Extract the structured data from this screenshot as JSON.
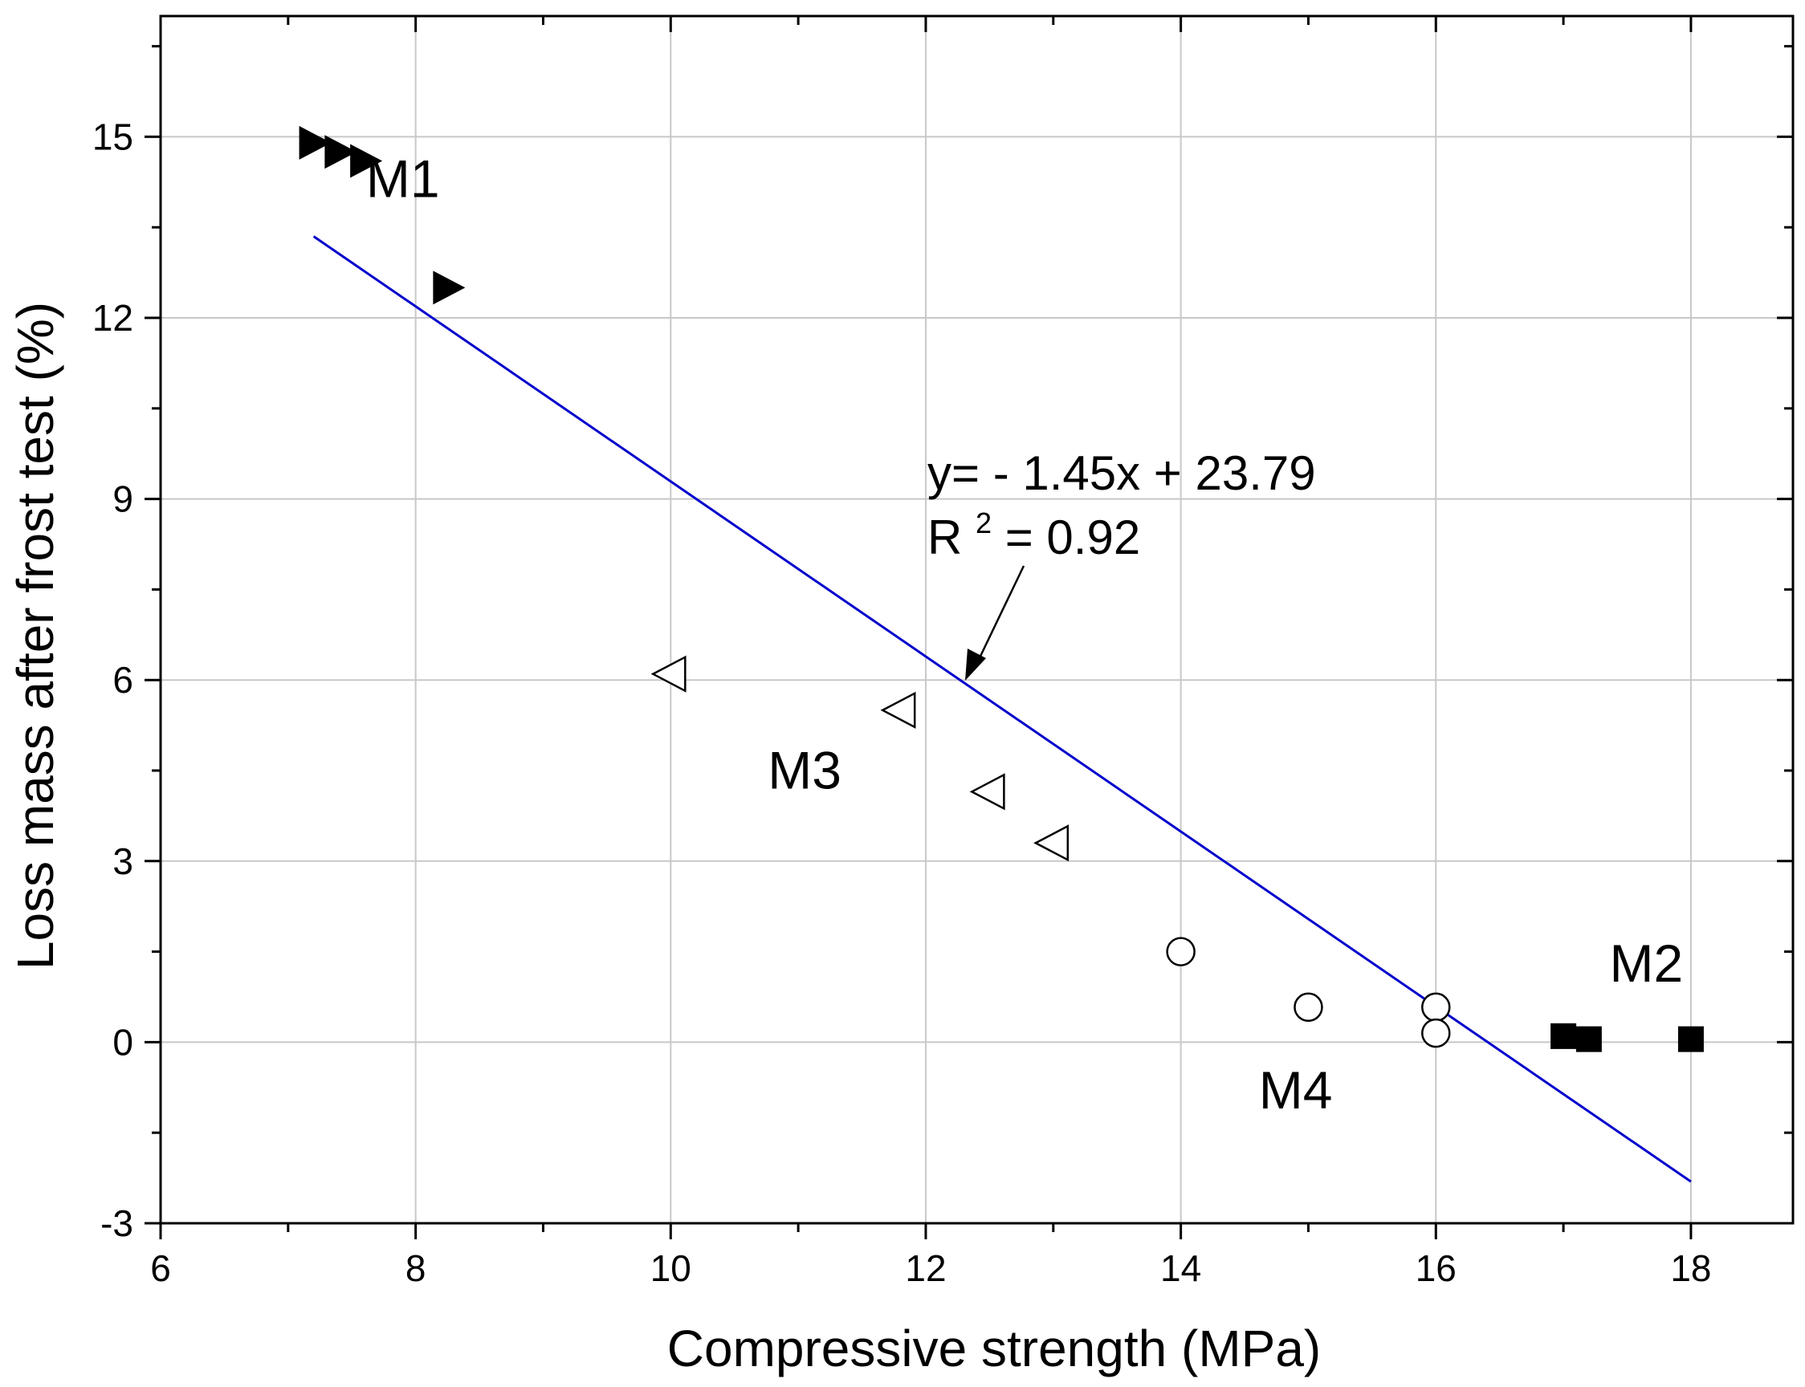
{
  "chart_data": {
    "type": "scatter",
    "title": "",
    "xlabel": "Compressive strength (MPa)",
    "ylabel": "Loss mass after frost test (%)",
    "xlim": [
      6,
      18.8
    ],
    "ylim": [
      -3,
      17
    ],
    "xticks": [
      6,
      8,
      10,
      12,
      14,
      16,
      18
    ],
    "yticks": [
      -3,
      0,
      3,
      6,
      9,
      12,
      15
    ],
    "grid": true,
    "series": [
      {
        "name": "M1",
        "marker": "triangle-right-filled",
        "points": [
          [
            7.2,
            14.9
          ],
          [
            7.4,
            14.75
          ],
          [
            7.6,
            14.6
          ],
          [
            8.25,
            12.5
          ]
        ]
      },
      {
        "name": "M2",
        "marker": "square-filled",
        "points": [
          [
            17.0,
            0.1
          ],
          [
            17.2,
            0.05
          ],
          [
            18.0,
            0.05
          ]
        ]
      },
      {
        "name": "M3",
        "marker": "triangle-left-open",
        "points": [
          [
            10.0,
            6.1
          ],
          [
            11.8,
            5.5
          ],
          [
            12.5,
            4.15
          ],
          [
            13.0,
            3.3
          ]
        ]
      },
      {
        "name": "M4",
        "marker": "circle-open",
        "points": [
          [
            14.0,
            1.5
          ],
          [
            15.0,
            0.58
          ],
          [
            16.0,
            0.58
          ],
          [
            16.0,
            0.15
          ]
        ]
      }
    ],
    "fit_line": {
      "slope": -1.45,
      "intercept": 23.79,
      "x_range": [
        7.2,
        18.0
      ],
      "color": "#0000cc",
      "equation": "y=  - 1.45x + 23.79",
      "r_squared_prefix": "R",
      "r_squared_sup": "2",
      "r_squared_value": "= 0.92"
    },
    "group_labels": [
      {
        "text": "M1",
        "x": 7.9,
        "y": 14.0
      },
      {
        "text": "M3",
        "x": 11.05,
        "y": 4.2
      },
      {
        "text": "M4",
        "x": 14.9,
        "y": -1.1
      },
      {
        "text": "M2",
        "x": 17.65,
        "y": 1.0
      }
    ],
    "colors": {
      "axis": "#000000",
      "grid": "#c8c8c8",
      "marker": "#000000"
    }
  }
}
